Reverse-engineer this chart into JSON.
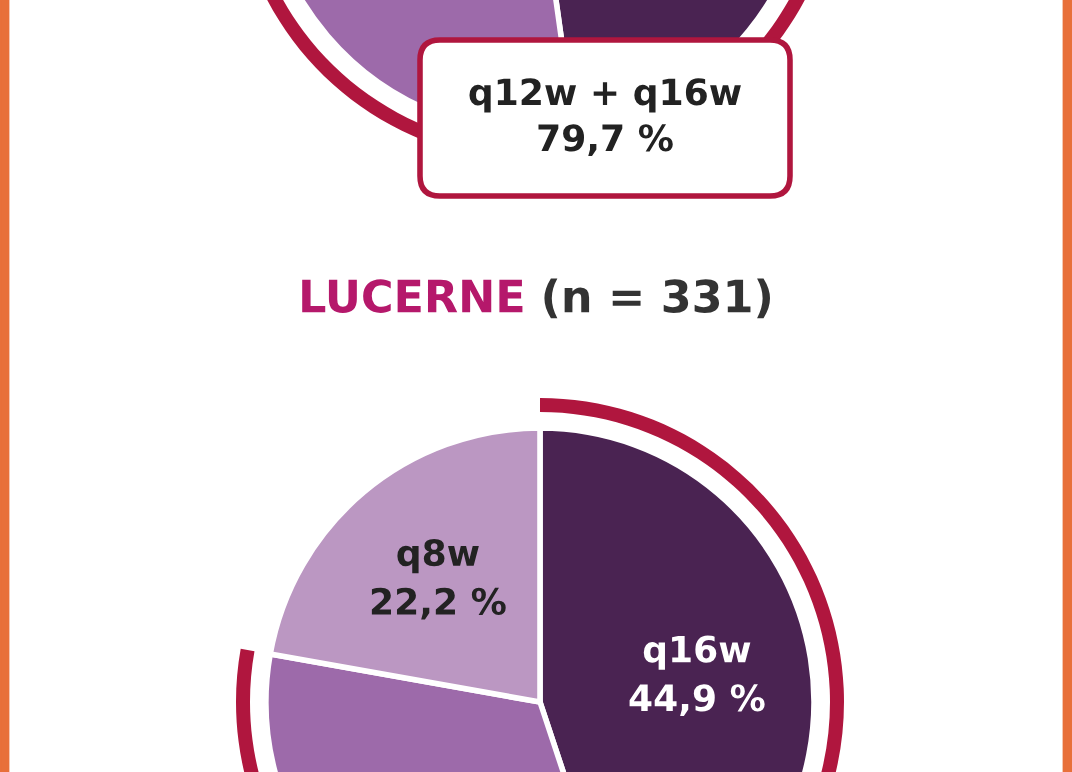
{
  "chart_data": [
    {
      "type": "other",
      "annotations": [
        "q12w + q16w\n79,7 %"
      ]
    },
    {
      "type": "pie",
      "title": "LUCERNE (n = 331)",
      "categories": [
        "q16w",
        null,
        "q8w"
      ],
      "values": [
        44.9,
        32.9,
        22.2
      ],
      "colors": [
        "#4a2352",
        "#9d6aaa",
        "#bb97c2"
      ],
      "value_labels": [
        "44,9 %",
        null,
        "22,2 %"
      ]
    }
  ]
}
